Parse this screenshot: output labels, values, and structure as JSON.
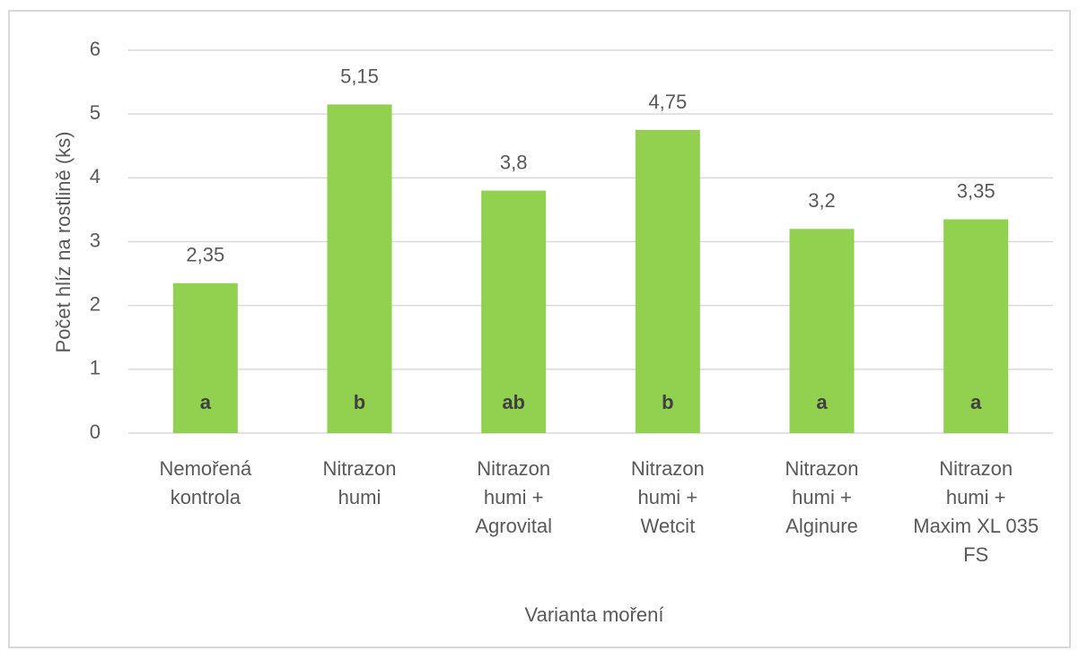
{
  "chart_data": {
    "type": "bar",
    "categories": [
      [
        "Nemořená",
        "kontrola"
      ],
      [
        "Nitrazon",
        "humi"
      ],
      [
        "Nitrazon",
        "humi +",
        "Agrovital"
      ],
      [
        "Nitrazon",
        "humi +",
        "Wetcit"
      ],
      [
        "Nitrazon",
        "humi +",
        "Alginure"
      ],
      [
        "Nitrazon",
        "humi +",
        "Maxim XL 035",
        "FS"
      ]
    ],
    "values": [
      2.35,
      5.15,
      3.8,
      4.75,
      3.2,
      3.35
    ],
    "value_labels": [
      "2,35",
      "5,15",
      "3,8",
      "4,75",
      "3,2",
      "3,35"
    ],
    "annotations": [
      "a",
      "b",
      "ab",
      "b",
      "a",
      "a"
    ],
    "color": "#92d050",
    "y_label": "Počet hlíz na rostlině (ks)",
    "x_label": "Varianta moření",
    "ylim": [
      0,
      6
    ],
    "yticks": [
      0,
      1,
      2,
      3,
      4,
      5,
      6
    ],
    "grid": true
  }
}
